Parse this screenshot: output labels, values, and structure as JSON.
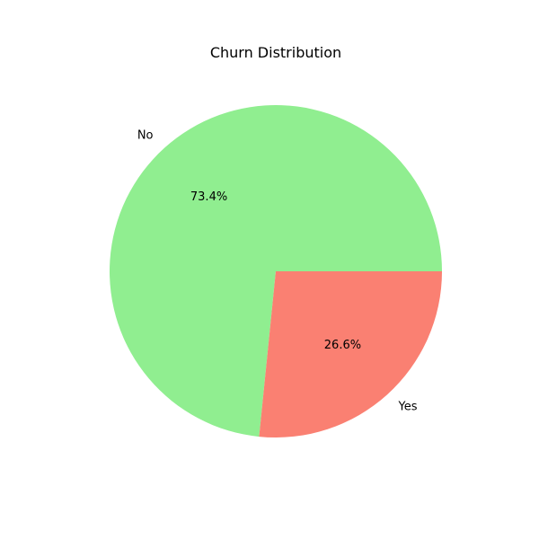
{
  "chart_data": {
    "type": "pie",
    "title": "Churn Distribution",
    "slices": [
      {
        "label": "No",
        "value": 73.4,
        "pct_label": "73.4%",
        "color": "#90EE90"
      },
      {
        "label": "Yes",
        "value": 26.6,
        "pct_label": "26.6%",
        "color": "#FA8072"
      }
    ],
    "start_angle_deg": 0,
    "direction": "counterclockwise",
    "legend": "none"
  }
}
